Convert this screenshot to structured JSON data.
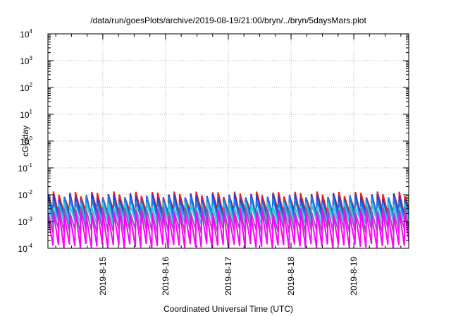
{
  "chart_data": {
    "type": "line",
    "title": "/data/run/goesPlots/archive/2019-08-19/21:00/bryn/../bryn/5daysMars.plot",
    "xlabel": "Coordinated Universal Time (UTC)",
    "ylabel": "cGy/day",
    "yscale": "log",
    "ylim": [
      0.0001,
      10000
    ],
    "xlim": [
      "2019-08-14T03:00",
      "2019-08-19T21:00"
    ],
    "grid": true,
    "legend": "none",
    "y_tick_labels": [
      {
        "base": "10",
        "exp": "-4"
      },
      {
        "base": "10",
        "exp": "-3"
      },
      {
        "base": "10",
        "exp": "-2"
      },
      {
        "base": "10",
        "exp": "-1"
      },
      {
        "base": "10",
        "exp": "0"
      },
      {
        "base": "10",
        "exp": "1"
      },
      {
        "base": "10",
        "exp": "2"
      },
      {
        "base": "10",
        "exp": "3"
      },
      {
        "base": "10",
        "exp": "4"
      }
    ],
    "x_tick_labels": [
      "2019-8-15",
      "2019-8-16",
      "2019-8-17",
      "2019-8-18",
      "2019-8-19"
    ],
    "sawtooth_period_hours": 2.1,
    "series": [
      {
        "color": "#e8201c",
        "peak": 0.0105,
        "trough": 0.0022
      },
      {
        "color": "#2b3fd6",
        "peak": 0.0088,
        "trough": 0.0017
      },
      {
        "color": "#1a7fe0",
        "peak": 0.0068,
        "trough": 0.0013
      },
      {
        "color": "#30c8dc",
        "peak": 0.0042,
        "trough": 0.0009
      },
      {
        "color": "#8b5bb0",
        "peak": 0.0028,
        "trough": 0.00045
      },
      {
        "color": "#ff00ff",
        "peak": 0.0021,
        "trough": 0.00012
      }
    ]
  }
}
